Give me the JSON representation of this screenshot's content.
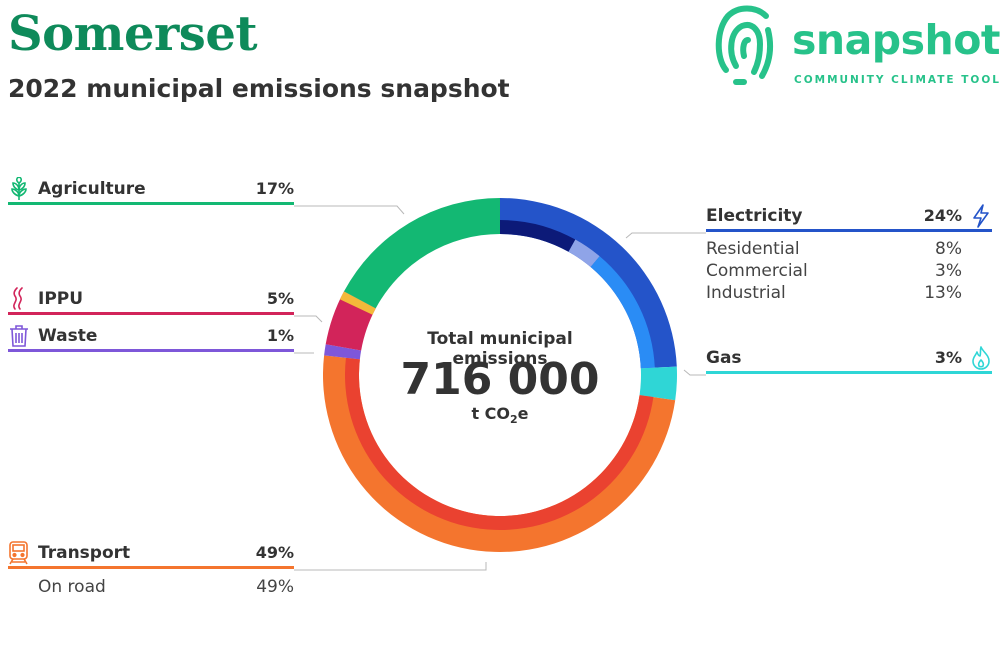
{
  "header": {
    "title": "Somerset",
    "subtitle": "2022 municipal emissions snapshot"
  },
  "logo": {
    "name": "snapshot",
    "tagline": "COMMUNITY CLIMATE TOOL",
    "color": "#27c28a"
  },
  "center": {
    "label": "Total municipal emissions",
    "value": "716 000",
    "unit_prefix": "t CO",
    "unit_sub": "2",
    "unit_suffix": "e"
  },
  "categories": {
    "agriculture": {
      "label": "Agriculture",
      "pct": "17%",
      "color": "#13b873",
      "icon": "wheat-icon"
    },
    "ippu": {
      "label": "IPPU",
      "pct": "5%",
      "color": "#d2245a",
      "icon": "smoke-icon"
    },
    "waste": {
      "label": "Waste",
      "pct": "1%",
      "color": "#7e57d9",
      "icon": "trash-bin-icon"
    },
    "electricity": {
      "label": "Electricity",
      "pct": "24%",
      "color": "#2454c9",
      "icon": "lightning-icon",
      "subs": [
        {
          "label": "Residential",
          "pct": "8%"
        },
        {
          "label": "Commercial",
          "pct": "3%"
        },
        {
          "label": "Industrial",
          "pct": "13%"
        }
      ]
    },
    "gas": {
      "label": "Gas",
      "pct": "3%",
      "color": "#2fd6d6",
      "icon": "flame-icon"
    },
    "transport": {
      "label": "Transport",
      "pct": "49%",
      "color": "#f4752e",
      "icon": "train-icon",
      "subs": [
        {
          "label": "On road",
          "pct": "49%"
        }
      ]
    }
  },
  "chart_data": {
    "type": "pie",
    "variant": "donut",
    "total": 716000,
    "series": [
      {
        "name": "Electricity",
        "value": 24,
        "color": "#2454c9",
        "sub": [
          {
            "name": "Residential",
            "value": 8,
            "color": "#0c1a78"
          },
          {
            "name": "Commercial",
            "value": 3,
            "color": "#8fa4e8"
          },
          {
            "name": "Industrial",
            "value": 13,
            "color": "#2a8cf5"
          }
        ]
      },
      {
        "name": "Gas",
        "value": 3,
        "color": "#2fd6d6"
      },
      {
        "name": "Transport",
        "value": 49,
        "color": "#f4752e",
        "sub": [
          {
            "name": "On road",
            "value": 49,
            "color": "#ea4230"
          }
        ]
      },
      {
        "name": "Waste",
        "value": 1,
        "color": "#7e57d9"
      },
      {
        "name": "IPPU",
        "value": 5,
        "color": "#d2245a",
        "accent": "#f4b93a"
      },
      {
        "name": "Agriculture",
        "value": 17,
        "color": "#13b873"
      }
    ]
  }
}
